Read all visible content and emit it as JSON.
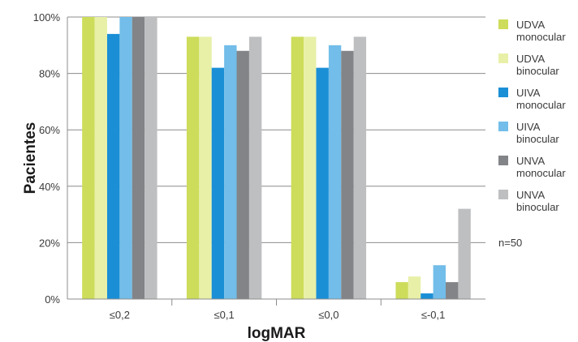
{
  "chart_data": {
    "type": "bar",
    "title": "",
    "xlabel": "logMAR",
    "ylabel": "Pacientes",
    "ylim": [
      0,
      100
    ],
    "yticks": [
      "0%",
      "20%",
      "40%",
      "60%",
      "80%",
      "100%"
    ],
    "categories": [
      "≤0,2",
      "≤0,1",
      "≤0,0",
      "≤-0,1"
    ],
    "series": [
      {
        "name": "UDVA monocular",
        "legend_lines": [
          "UDVA",
          "monocular"
        ],
        "color": "#cddc5a",
        "values": [
          100,
          93,
          93,
          6
        ]
      },
      {
        "name": "UDVA binocular",
        "legend_lines": [
          "UDVA",
          "binocular"
        ],
        "color": "#e8f0a8",
        "values": [
          100,
          93,
          93,
          8
        ]
      },
      {
        "name": "UIVA monocular",
        "legend_lines": [
          "UIVA",
          "monocular"
        ],
        "color": "#1a8fd6",
        "values": [
          94,
          82,
          82,
          2
        ]
      },
      {
        "name": "UIVA binocular",
        "legend_lines": [
          "UIVA",
          "binocular"
        ],
        "color": "#72bde9",
        "values": [
          100,
          90,
          90,
          12
        ]
      },
      {
        "name": "UNVA monocular",
        "legend_lines": [
          "UNVA",
          "monocular"
        ],
        "color": "#828487",
        "values": [
          100,
          88,
          88,
          6
        ]
      },
      {
        "name": "UNVA binocular",
        "legend_lines": [
          "UNVA",
          "binocular"
        ],
        "color": "#bebfc1",
        "values": [
          100,
          93,
          93,
          32
        ]
      }
    ],
    "annotation": "n=50",
    "grid": true,
    "legend_position": "right"
  }
}
